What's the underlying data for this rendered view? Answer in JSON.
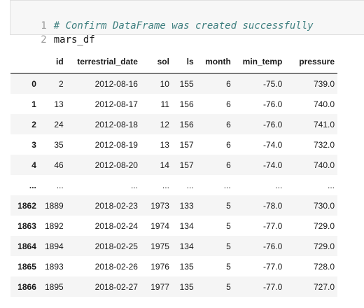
{
  "code_cell": {
    "lines": [
      {
        "number": "1",
        "text": "# Confirm DataFrame was created successfully",
        "kind": "comment"
      },
      {
        "number": "2",
        "text": "mars_df",
        "kind": "code"
      }
    ]
  },
  "dataframe": {
    "columns": [
      "",
      "id",
      "terrestrial_date",
      "sol",
      "ls",
      "month",
      "min_temp",
      "pressure"
    ],
    "rows": [
      {
        "index": "0",
        "id": "2",
        "terrestrial_date": "2012-08-16",
        "sol": "10",
        "ls": "155",
        "month": "6",
        "min_temp": "-75.0",
        "pressure": "739.0"
      },
      {
        "index": "1",
        "id": "13",
        "terrestrial_date": "2012-08-17",
        "sol": "11",
        "ls": "156",
        "month": "6",
        "min_temp": "-76.0",
        "pressure": "740.0"
      },
      {
        "index": "2",
        "id": "24",
        "terrestrial_date": "2012-08-18",
        "sol": "12",
        "ls": "156",
        "month": "6",
        "min_temp": "-76.0",
        "pressure": "741.0"
      },
      {
        "index": "3",
        "id": "35",
        "terrestrial_date": "2012-08-19",
        "sol": "13",
        "ls": "157",
        "month": "6",
        "min_temp": "-74.0",
        "pressure": "732.0"
      },
      {
        "index": "4",
        "id": "46",
        "terrestrial_date": "2012-08-20",
        "sol": "14",
        "ls": "157",
        "month": "6",
        "min_temp": "-74.0",
        "pressure": "740.0"
      },
      {
        "index": "...",
        "id": "...",
        "terrestrial_date": "...",
        "sol": "...",
        "ls": "...",
        "month": "...",
        "min_temp": "...",
        "pressure": "..."
      },
      {
        "index": "1862",
        "id": "1889",
        "terrestrial_date": "2018-02-23",
        "sol": "1973",
        "ls": "133",
        "month": "5",
        "min_temp": "-78.0",
        "pressure": "730.0"
      },
      {
        "index": "1863",
        "id": "1892",
        "terrestrial_date": "2018-02-24",
        "sol": "1974",
        "ls": "134",
        "month": "5",
        "min_temp": "-77.0",
        "pressure": "729.0"
      },
      {
        "index": "1864",
        "id": "1894",
        "terrestrial_date": "2018-02-25",
        "sol": "1975",
        "ls": "134",
        "month": "5",
        "min_temp": "-76.0",
        "pressure": "729.0"
      },
      {
        "index": "1865",
        "id": "1893",
        "terrestrial_date": "2018-02-26",
        "sol": "1976",
        "ls": "135",
        "month": "5",
        "min_temp": "-77.0",
        "pressure": "728.0"
      },
      {
        "index": "1866",
        "id": "1895",
        "terrestrial_date": "2018-02-27",
        "sol": "1977",
        "ls": "135",
        "month": "5",
        "min_temp": "-77.0",
        "pressure": "727.0"
      }
    ]
  },
  "colors": {
    "comment": "#408080",
    "code_background": "#f7f7f7",
    "stripe": "#f5f5f5"
  }
}
